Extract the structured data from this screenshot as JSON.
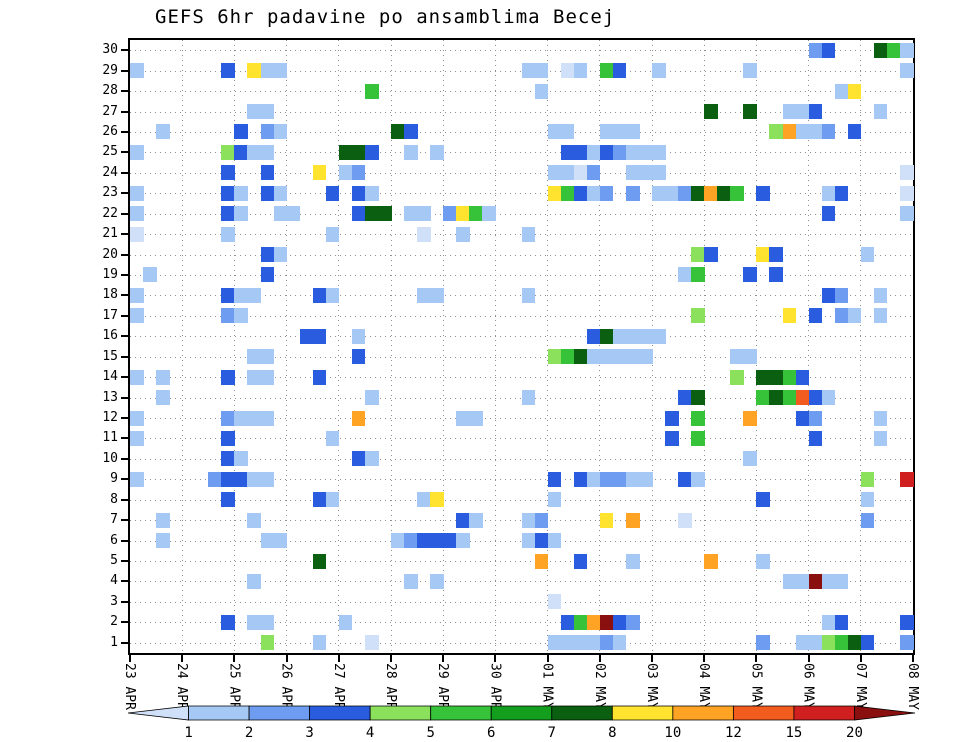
{
  "chart_data": {
    "type": "heatmap",
    "title": "GEFS 6hr padavine po ansamblima Becej",
    "x_tick_labels": [
      "23 APR",
      "24 APR",
      "25 APR",
      "26 APR",
      "27 APR",
      "28 APR",
      "29 APR",
      "30 APR",
      "01 MAY",
      "02 MAY",
      "03 MAY",
      "04 MAY",
      "05 MAY",
      "06 MAY",
      "07 MAY",
      "08 MAY"
    ],
    "y_tick_labels": [
      "1",
      "2",
      "3",
      "4",
      "5",
      "6",
      "7",
      "8",
      "9",
      "10",
      "11",
      "12",
      "13",
      "14",
      "15",
      "16",
      "17",
      "18",
      "19",
      "20",
      "21",
      "22",
      "23",
      "24",
      "25",
      "26",
      "27",
      "28",
      "29",
      "30"
    ],
    "steps_per_day": 4,
    "n_steps": 60,
    "legend_labels": [
      "1",
      "2",
      "3",
      "4",
      "5",
      "6",
      "7",
      "8",
      "10",
      "12",
      "15",
      "20"
    ],
    "palette": [
      "#cfe0f8",
      "#a6c8f4",
      "#6d9cf0",
      "#2a5ce0",
      "#8be05c",
      "#36c33a",
      "#149e1d",
      "#0a5f10",
      "#ffe32e",
      "#ffa325",
      "#f25c1e",
      "#cf1f1f",
      "#8a0f0f"
    ],
    "cells": [
      [
        30,
        52,
        2
      ],
      [
        30,
        53,
        3
      ],
      [
        30,
        57,
        7
      ],
      [
        30,
        58,
        5
      ],
      [
        30,
        59,
        1
      ],
      [
        29,
        0,
        1
      ],
      [
        29,
        7,
        3
      ],
      [
        29,
        9,
        8
      ],
      [
        29,
        10,
        1
      ],
      [
        29,
        11,
        1
      ],
      [
        29,
        30,
        1
      ],
      [
        29,
        31,
        1
      ],
      [
        29,
        33,
        0
      ],
      [
        29,
        34,
        1
      ],
      [
        29,
        36,
        5
      ],
      [
        29,
        37,
        3
      ],
      [
        29,
        40,
        1
      ],
      [
        29,
        47,
        1
      ],
      [
        29,
        59,
        1
      ],
      [
        28,
        18,
        5
      ],
      [
        28,
        31,
        1
      ],
      [
        28,
        54,
        1
      ],
      [
        28,
        55,
        8
      ],
      [
        27,
        9,
        1
      ],
      [
        27,
        10,
        1
      ],
      [
        27,
        44,
        7
      ],
      [
        27,
        47,
        7
      ],
      [
        27,
        50,
        1
      ],
      [
        27,
        51,
        1
      ],
      [
        27,
        52,
        3
      ],
      [
        27,
        57,
        1
      ],
      [
        26,
        2,
        1
      ],
      [
        26,
        8,
        3
      ],
      [
        26,
        10,
        2
      ],
      [
        26,
        11,
        1
      ],
      [
        26,
        20,
        7
      ],
      [
        26,
        21,
        3
      ],
      [
        26,
        32,
        1
      ],
      [
        26,
        33,
        1
      ],
      [
        26,
        36,
        1
      ],
      [
        26,
        37,
        1
      ],
      [
        26,
        38,
        1
      ],
      [
        26,
        49,
        4
      ],
      [
        26,
        50,
        9
      ],
      [
        26,
        51,
        1
      ],
      [
        26,
        52,
        1
      ],
      [
        26,
        53,
        2
      ],
      [
        26,
        55,
        3
      ],
      [
        25,
        0,
        1
      ],
      [
        25,
        7,
        4
      ],
      [
        25,
        8,
        3
      ],
      [
        25,
        9,
        1
      ],
      [
        25,
        10,
        1
      ],
      [
        25,
        16,
        7
      ],
      [
        25,
        17,
        7
      ],
      [
        25,
        18,
        3
      ],
      [
        25,
        21,
        1
      ],
      [
        25,
        23,
        1
      ],
      [
        25,
        33,
        3
      ],
      [
        25,
        34,
        3
      ],
      [
        25,
        35,
        1
      ],
      [
        25,
        36,
        3
      ],
      [
        25,
        37,
        2
      ],
      [
        25,
        38,
        1
      ],
      [
        25,
        39,
        1
      ],
      [
        25,
        40,
        1
      ],
      [
        24,
        7,
        3
      ],
      [
        24,
        10,
        3
      ],
      [
        24,
        14,
        8
      ],
      [
        24,
        16,
        1
      ],
      [
        24,
        17,
        2
      ],
      [
        24,
        32,
        1
      ],
      [
        24,
        33,
        1
      ],
      [
        24,
        34,
        0
      ],
      [
        24,
        35,
        2
      ],
      [
        24,
        38,
        1
      ],
      [
        24,
        39,
        1
      ],
      [
        24,
        40,
        1
      ],
      [
        24,
        59,
        0
      ],
      [
        23,
        0,
        1
      ],
      [
        23,
        7,
        3
      ],
      [
        23,
        8,
        1
      ],
      [
        23,
        10,
        3
      ],
      [
        23,
        11,
        1
      ],
      [
        23,
        15,
        3
      ],
      [
        23,
        17,
        3
      ],
      [
        23,
        18,
        1
      ],
      [
        23,
        32,
        8
      ],
      [
        23,
        33,
        5
      ],
      [
        23,
        34,
        3
      ],
      [
        23,
        35,
        1
      ],
      [
        23,
        36,
        2
      ],
      [
        23,
        38,
        2
      ],
      [
        23,
        40,
        1
      ],
      [
        23,
        41,
        1
      ],
      [
        23,
        42,
        2
      ],
      [
        23,
        43,
        7
      ],
      [
        23,
        44,
        9
      ],
      [
        23,
        45,
        7
      ],
      [
        23,
        46,
        5
      ],
      [
        23,
        48,
        3
      ],
      [
        23,
        53,
        1
      ],
      [
        23,
        54,
        3
      ],
      [
        23,
        59,
        0
      ],
      [
        22,
        0,
        1
      ],
      [
        22,
        7,
        3
      ],
      [
        22,
        8,
        1
      ],
      [
        22,
        11,
        1
      ],
      [
        22,
        12,
        1
      ],
      [
        22,
        17,
        3
      ],
      [
        22,
        18,
        7
      ],
      [
        22,
        19,
        7
      ],
      [
        22,
        21,
        1
      ],
      [
        22,
        22,
        1
      ],
      [
        22,
        24,
        2
      ],
      [
        22,
        25,
        8
      ],
      [
        22,
        26,
        5
      ],
      [
        22,
        27,
        1
      ],
      [
        22,
        53,
        3
      ],
      [
        22,
        59,
        1
      ],
      [
        21,
        0,
        0
      ],
      [
        21,
        7,
        1
      ],
      [
        21,
        15,
        1
      ],
      [
        21,
        22,
        0
      ],
      [
        21,
        25,
        1
      ],
      [
        21,
        30,
        1
      ],
      [
        20,
        10,
        3
      ],
      [
        20,
        11,
        1
      ],
      [
        20,
        43,
        4
      ],
      [
        20,
        44,
        3
      ],
      [
        20,
        48,
        8
      ],
      [
        20,
        49,
        3
      ],
      [
        20,
        56,
        1
      ],
      [
        19,
        1,
        1
      ],
      [
        19,
        10,
        3
      ],
      [
        19,
        42,
        1
      ],
      [
        19,
        43,
        5
      ],
      [
        19,
        47,
        3
      ],
      [
        19,
        49,
        3
      ],
      [
        18,
        0,
        1
      ],
      [
        18,
        7,
        3
      ],
      [
        18,
        8,
        1
      ],
      [
        18,
        9,
        1
      ],
      [
        18,
        14,
        3
      ],
      [
        18,
        15,
        1
      ],
      [
        18,
        22,
        1
      ],
      [
        18,
        23,
        1
      ],
      [
        18,
        30,
        1
      ],
      [
        18,
        53,
        3
      ],
      [
        18,
        54,
        2
      ],
      [
        18,
        57,
        1
      ],
      [
        17,
        0,
        1
      ],
      [
        17,
        7,
        2
      ],
      [
        17,
        8,
        1
      ],
      [
        17,
        43,
        4
      ],
      [
        17,
        50,
        8
      ],
      [
        17,
        52,
        3
      ],
      [
        17,
        54,
        2
      ],
      [
        17,
        55,
        1
      ],
      [
        17,
        57,
        1
      ],
      [
        16,
        13,
        3
      ],
      [
        16,
        14,
        3
      ],
      [
        16,
        17,
        1
      ],
      [
        16,
        35,
        3
      ],
      [
        16,
        36,
        7
      ],
      [
        16,
        37,
        1
      ],
      [
        16,
        38,
        1
      ],
      [
        16,
        39,
        1
      ],
      [
        16,
        40,
        1
      ],
      [
        15,
        9,
        1
      ],
      [
        15,
        10,
        1
      ],
      [
        15,
        17,
        3
      ],
      [
        15,
        32,
        4
      ],
      [
        15,
        33,
        5
      ],
      [
        15,
        34,
        7
      ],
      [
        15,
        35,
        1
      ],
      [
        15,
        36,
        1
      ],
      [
        15,
        37,
        1
      ],
      [
        15,
        38,
        1
      ],
      [
        15,
        39,
        1
      ],
      [
        15,
        46,
        1
      ],
      [
        15,
        47,
        1
      ],
      [
        14,
        0,
        1
      ],
      [
        14,
        2,
        1
      ],
      [
        14,
        7,
        3
      ],
      [
        14,
        9,
        1
      ],
      [
        14,
        10,
        1
      ],
      [
        14,
        14,
        3
      ],
      [
        14,
        46,
        4
      ],
      [
        14,
        48,
        7
      ],
      [
        14,
        49,
        7
      ],
      [
        14,
        50,
        5
      ],
      [
        14,
        51,
        3
      ],
      [
        13,
        2,
        1
      ],
      [
        13,
        18,
        1
      ],
      [
        13,
        30,
        1
      ],
      [
        13,
        42,
        3
      ],
      [
        13,
        43,
        7
      ],
      [
        13,
        48,
        5
      ],
      [
        13,
        49,
        7
      ],
      [
        13,
        50,
        5
      ],
      [
        13,
        51,
        10
      ],
      [
        13,
        52,
        3
      ],
      [
        13,
        53,
        1
      ],
      [
        12,
        0,
        1
      ],
      [
        12,
        7,
        2
      ],
      [
        12,
        8,
        1
      ],
      [
        12,
        9,
        1
      ],
      [
        12,
        10,
        1
      ],
      [
        12,
        17,
        9
      ],
      [
        12,
        25,
        1
      ],
      [
        12,
        26,
        1
      ],
      [
        12,
        41,
        3
      ],
      [
        12,
        43,
        5
      ],
      [
        12,
        47,
        9
      ],
      [
        12,
        51,
        3
      ],
      [
        12,
        52,
        2
      ],
      [
        12,
        57,
        1
      ],
      [
        11,
        0,
        1
      ],
      [
        11,
        7,
        3
      ],
      [
        11,
        15,
        1
      ],
      [
        11,
        41,
        3
      ],
      [
        11,
        43,
        5
      ],
      [
        11,
        52,
        3
      ],
      [
        11,
        57,
        1
      ],
      [
        10,
        7,
        3
      ],
      [
        10,
        8,
        1
      ],
      [
        10,
        17,
        3
      ],
      [
        10,
        18,
        1
      ],
      [
        10,
        47,
        1
      ],
      [
        9,
        0,
        1
      ],
      [
        9,
        6,
        2
      ],
      [
        9,
        7,
        3
      ],
      [
        9,
        8,
        3
      ],
      [
        9,
        9,
        1
      ],
      [
        9,
        10,
        1
      ],
      [
        9,
        32,
        3
      ],
      [
        9,
        34,
        3
      ],
      [
        9,
        35,
        1
      ],
      [
        9,
        36,
        2
      ],
      [
        9,
        37,
        2
      ],
      [
        9,
        38,
        1
      ],
      [
        9,
        39,
        1
      ],
      [
        9,
        42,
        3
      ],
      [
        9,
        43,
        1
      ],
      [
        9,
        56,
        4
      ],
      [
        9,
        59,
        11
      ],
      [
        8,
        7,
        3
      ],
      [
        8,
        14,
        3
      ],
      [
        8,
        15,
        1
      ],
      [
        8,
        22,
        1
      ],
      [
        8,
        23,
        8
      ],
      [
        8,
        32,
        1
      ],
      [
        8,
        48,
        3
      ],
      [
        8,
        56,
        1
      ],
      [
        7,
        2,
        1
      ],
      [
        7,
        9,
        1
      ],
      [
        7,
        25,
        3
      ],
      [
        7,
        26,
        1
      ],
      [
        7,
        30,
        1
      ],
      [
        7,
        31,
        2
      ],
      [
        7,
        36,
        8
      ],
      [
        7,
        38,
        9
      ],
      [
        7,
        42,
        0
      ],
      [
        7,
        56,
        2
      ],
      [
        6,
        2,
        1
      ],
      [
        6,
        10,
        1
      ],
      [
        6,
        11,
        1
      ],
      [
        6,
        20,
        1
      ],
      [
        6,
        21,
        2
      ],
      [
        6,
        22,
        3
      ],
      [
        6,
        23,
        3
      ],
      [
        6,
        24,
        3
      ],
      [
        6,
        25,
        1
      ],
      [
        6,
        30,
        1
      ],
      [
        6,
        31,
        3
      ],
      [
        6,
        32,
        1
      ],
      [
        5,
        14,
        7
      ],
      [
        5,
        31,
        9
      ],
      [
        5,
        34,
        3
      ],
      [
        5,
        38,
        1
      ],
      [
        5,
        44,
        9
      ],
      [
        5,
        48,
        1
      ],
      [
        4,
        9,
        1
      ],
      [
        4,
        21,
        1
      ],
      [
        4,
        23,
        1
      ],
      [
        4,
        50,
        1
      ],
      [
        4,
        51,
        1
      ],
      [
        4,
        52,
        12
      ],
      [
        4,
        53,
        1
      ],
      [
        4,
        54,
        1
      ],
      [
        3,
        32,
        0
      ],
      [
        2,
        7,
        3
      ],
      [
        2,
        9,
        1
      ],
      [
        2,
        10,
        1
      ],
      [
        2,
        16,
        1
      ],
      [
        2,
        33,
        3
      ],
      [
        2,
        34,
        5
      ],
      [
        2,
        35,
        9
      ],
      [
        2,
        36,
        12
      ],
      [
        2,
        37,
        3
      ],
      [
        2,
        38,
        2
      ],
      [
        2,
        53,
        1
      ],
      [
        2,
        54,
        3
      ],
      [
        2,
        59,
        3
      ],
      [
        1,
        10,
        4
      ],
      [
        1,
        14,
        1
      ],
      [
        1,
        18,
        0
      ],
      [
        1,
        32,
        1
      ],
      [
        1,
        33,
        1
      ],
      [
        1,
        34,
        1
      ],
      [
        1,
        35,
        1
      ],
      [
        1,
        36,
        2
      ],
      [
        1,
        37,
        1
      ],
      [
        1,
        48,
        2
      ],
      [
        1,
        51,
        1
      ],
      [
        1,
        52,
        1
      ],
      [
        1,
        53,
        4
      ],
      [
        1,
        54,
        5
      ],
      [
        1,
        55,
        7
      ],
      [
        1,
        56,
        3
      ],
      [
        1,
        59,
        2
      ]
    ]
  }
}
